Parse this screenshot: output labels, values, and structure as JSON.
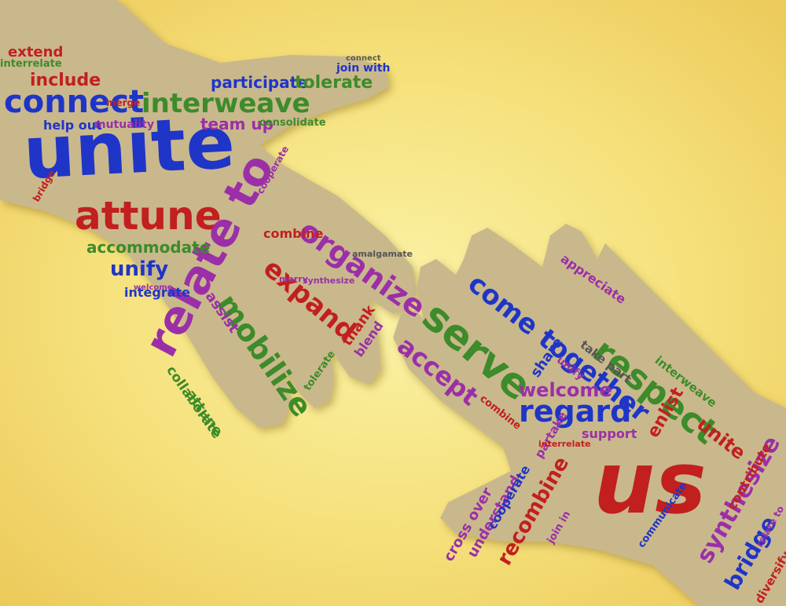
{
  "colors": {
    "background": "#f5e07a",
    "hand_fill": "#c9b88c",
    "blue": "#1f35c8",
    "green": "#3d8b2a",
    "red": "#c21f1f",
    "purple": "#9b2fa8"
  },
  "left_hand": {
    "words": {
      "unite": "unite",
      "connect": "connect",
      "interweave": "interweave",
      "attune": "attune",
      "relate_to": "relate to",
      "organize": "organize",
      "expand": "expand",
      "mobilize": "mobilize",
      "accommodate": "accommodate",
      "unify": "unify",
      "participate": "participate",
      "tolerate": "tolerate",
      "include": "include",
      "team_up": "team up",
      "help_out": "help out",
      "mutuality": "mutuality",
      "consolidate": "consolidate",
      "integrate": "integrate",
      "assist": "assist",
      "collaborate": "collaborate",
      "combine": "combine",
      "extend": "extend",
      "join_with": "join with",
      "thank": "thank",
      "blend": "blend",
      "tolerate_small": "tolerate",
      "amalgamate": "amalgamate",
      "marry": "marry",
      "synthesize": "synthesize",
      "welcome": "welcome",
      "attune_small": "attune",
      "bridge": "bridge",
      "merge": "merge",
      "interrelate": "interrelate",
      "connect_small": "connect",
      "cooperate": "cooperate"
    }
  },
  "right_hand": {
    "words": {
      "us": "us",
      "serve": "serve",
      "come_together": "come together",
      "respect": "respect",
      "regard": "regard",
      "welcome": "welcome",
      "accept": "accept",
      "recombine": "recombine",
      "synthesize": "synthesize",
      "bridge": "bridge",
      "unite": "unite",
      "enlist": "enlist",
      "share": "share",
      "cross_over": "cross over",
      "understand": "understand",
      "cooperate": "cooperate",
      "appreciate": "appreciate",
      "interweave": "interweave",
      "contribute": "contribute",
      "support": "support",
      "partake": "partake",
      "diversify": "diversify",
      "take_part": "take part",
      "join_in": "join in",
      "unify": "unify",
      "combine": "combine",
      "relate_to": "relate to",
      "communicate": "communicate",
      "interrelate": "interrelate"
    }
  }
}
